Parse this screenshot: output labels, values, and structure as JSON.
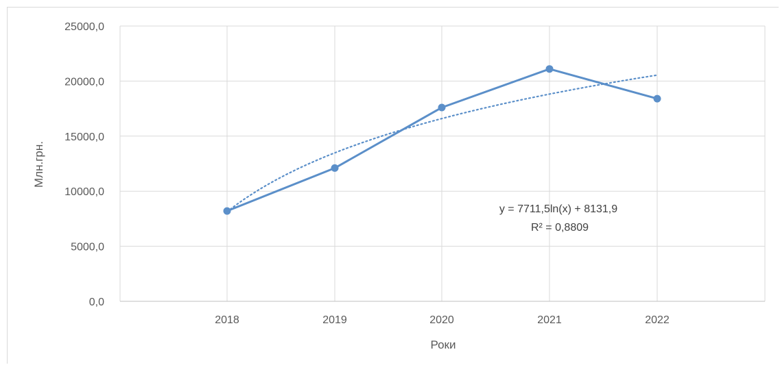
{
  "chart_data": {
    "type": "line",
    "categories": [
      "2018",
      "2019",
      "2020",
      "2021",
      "2022"
    ],
    "series": [
      {
        "values": [
          8200,
          12100,
          17600,
          21100,
          18400
        ],
        "color": "#5b8fc9",
        "markers": true
      }
    ],
    "trendline": {
      "kind": "logarithmic",
      "a": 7711.5,
      "b": 8131.9,
      "style": "dotted",
      "color": "#5b8fc9",
      "equation_line1": "y = 7711,5ln(x) + 8131,9",
      "equation_line2": "R² = 0,8809"
    },
    "xlabel": "Роки",
    "ylabel": "Млн.грн.",
    "ylim": [
      0,
      25000
    ],
    "ytick_values": [
      0,
      5000,
      10000,
      15000,
      20000,
      25000
    ],
    "ytick_labels": [
      "0,0",
      "5000,0",
      "10000,0",
      "15000,0",
      "20000,0",
      "25000,0"
    ],
    "grid": true,
    "gridline_color": "#d9d9d9"
  }
}
